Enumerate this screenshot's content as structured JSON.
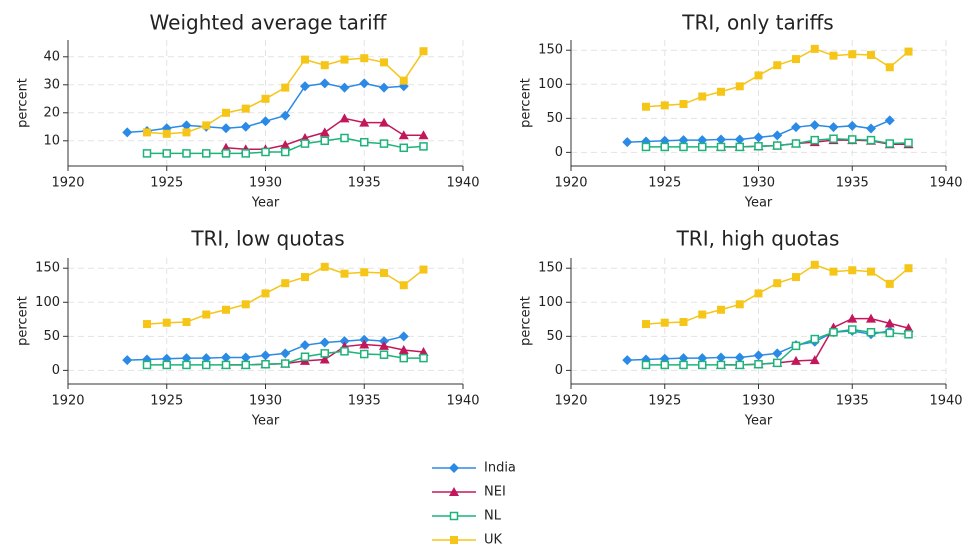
{
  "chart_data": [
    {
      "type": "line",
      "title": "Weighted average tariff",
      "xlabel": "Year",
      "ylabel": "percent",
      "x": [
        1923,
        1924,
        1925,
        1926,
        1927,
        1928,
        1929,
        1930,
        1931,
        1932,
        1933,
        1934,
        1935,
        1936,
        1937,
        1938
      ],
      "xlim": [
        1920,
        1940
      ],
      "xticks": [
        1920,
        1925,
        1930,
        1935,
        1940
      ],
      "ylim": [
        1,
        46
      ],
      "yticks": [
        10,
        20,
        30,
        40
      ],
      "grid": true,
      "series": [
        {
          "name": "India",
          "color": "#2b8ae6",
          "values": [
            13,
            13.5,
            14.5,
            15.5,
            15,
            14.5,
            15,
            17,
            19,
            29.5,
            30.5,
            29,
            30.5,
            29,
            29.5,
            null
          ]
        },
        {
          "name": "NEI",
          "color": "#c2185b",
          "values": [
            null,
            null,
            null,
            null,
            null,
            7.5,
            7,
            7,
            8.5,
            11,
            13,
            18,
            16.5,
            16.5,
            12,
            12
          ]
        },
        {
          "name": "NL",
          "color": "#1db37a",
          "values": [
            null,
            5.5,
            5.5,
            5.5,
            5.5,
            5.5,
            5.5,
            6,
            6,
            9,
            10,
            11,
            9.5,
            9,
            7.5,
            8
          ]
        },
        {
          "name": "UK",
          "color": "#f5c518",
          "values": [
            null,
            13,
            12.5,
            13,
            15.5,
            20,
            21.5,
            25,
            29,
            39,
            37,
            39,
            39.5,
            38,
            31.5,
            42
          ]
        }
      ]
    },
    {
      "type": "line",
      "title": "TRI, only tariffs",
      "xlabel": "Year",
      "ylabel": "percent",
      "x": [
        1923,
        1924,
        1925,
        1926,
        1927,
        1928,
        1929,
        1930,
        1931,
        1932,
        1933,
        1934,
        1935,
        1936,
        1937,
        1938
      ],
      "xlim": [
        1920,
        1940
      ],
      "xticks": [
        1920,
        1925,
        1930,
        1935,
        1940
      ],
      "ylim": [
        -20,
        165
      ],
      "yticks": [
        0,
        50,
        100,
        150
      ],
      "grid": true,
      "series": [
        {
          "name": "India",
          "color": "#2b8ae6",
          "values": [
            15,
            16,
            17,
            18,
            18,
            19,
            19,
            22,
            25,
            37,
            40,
            37,
            39,
            35,
            47,
            null
          ]
        },
        {
          "name": "NEI",
          "color": "#c2185b",
          "values": [
            null,
            null,
            null,
            null,
            null,
            8,
            8,
            9,
            10,
            13,
            15,
            18,
            18,
            17,
            12,
            12
          ]
        },
        {
          "name": "NL",
          "color": "#1db37a",
          "values": [
            null,
            8,
            8,
            8,
            8,
            8,
            8,
            9,
            10,
            13,
            18,
            20,
            19,
            18,
            13,
            14
          ]
        },
        {
          "name": "UK",
          "color": "#f5c518",
          "values": [
            null,
            67,
            69,
            71,
            82,
            89,
            97,
            113,
            128,
            137,
            152,
            142,
            144,
            143,
            125,
            148
          ]
        }
      ]
    },
    {
      "type": "line",
      "title": "TRI, low quotas",
      "xlabel": "Year",
      "ylabel": "percent",
      "x": [
        1923,
        1924,
        1925,
        1926,
        1927,
        1928,
        1929,
        1930,
        1931,
        1932,
        1933,
        1934,
        1935,
        1936,
        1937,
        1938
      ],
      "xlim": [
        1920,
        1940
      ],
      "xticks": [
        1920,
        1925,
        1930,
        1935,
        1940
      ],
      "ylim": [
        -20,
        165
      ],
      "yticks": [
        0,
        50,
        100,
        150
      ],
      "grid": true,
      "series": [
        {
          "name": "India",
          "color": "#2b8ae6",
          "values": [
            15,
            16,
            17,
            18,
            18,
            19,
            19,
            22,
            25,
            37,
            41,
            43,
            45,
            43,
            50,
            null
          ]
        },
        {
          "name": "NEI",
          "color": "#c2185b",
          "values": [
            null,
            null,
            null,
            null,
            null,
            8,
            8,
            9,
            10,
            14,
            16,
            35,
            38,
            36,
            30,
            27
          ]
        },
        {
          "name": "NL",
          "color": "#1db37a",
          "values": [
            null,
            8,
            8,
            8,
            8,
            8,
            8,
            9,
            10,
            20,
            25,
            28,
            24,
            23,
            18,
            18
          ]
        },
        {
          "name": "UK",
          "color": "#f5c518",
          "values": [
            null,
            68,
            70,
            71,
            82,
            89,
            97,
            113,
            128,
            137,
            152,
            142,
            144,
            143,
            125,
            148
          ]
        }
      ]
    },
    {
      "type": "line",
      "title": "TRI, high quotas",
      "xlabel": "Year",
      "ylabel": "percent",
      "x": [
        1923,
        1924,
        1925,
        1926,
        1927,
        1928,
        1929,
        1930,
        1931,
        1932,
        1933,
        1934,
        1935,
        1936,
        1937,
        1938
      ],
      "xlim": [
        1920,
        1940
      ],
      "xticks": [
        1920,
        1925,
        1930,
        1935,
        1940
      ],
      "ylim": [
        -20,
        165
      ],
      "yticks": [
        0,
        50,
        100,
        150
      ],
      "grid": true,
      "series": [
        {
          "name": "India",
          "color": "#2b8ae6",
          "values": [
            15,
            16,
            17,
            18,
            18,
            19,
            19,
            22,
            25,
            37,
            42,
            56,
            58,
            53,
            58,
            null
          ]
        },
        {
          "name": "NEI",
          "color": "#c2185b",
          "values": [
            null,
            null,
            null,
            null,
            null,
            8,
            8,
            9,
            11,
            14,
            15,
            63,
            76,
            76,
            69,
            62
          ]
        },
        {
          "name": "NL",
          "color": "#1db37a",
          "values": [
            null,
            8,
            8,
            8,
            8,
            8,
            8,
            9,
            11,
            36,
            46,
            56,
            60,
            56,
            55,
            53
          ]
        },
        {
          "name": "UK",
          "color": "#f5c518",
          "values": [
            null,
            68,
            70,
            71,
            82,
            89,
            97,
            113,
            128,
            137,
            155,
            145,
            147,
            145,
            127,
            150
          ]
        }
      ]
    }
  ]
}
